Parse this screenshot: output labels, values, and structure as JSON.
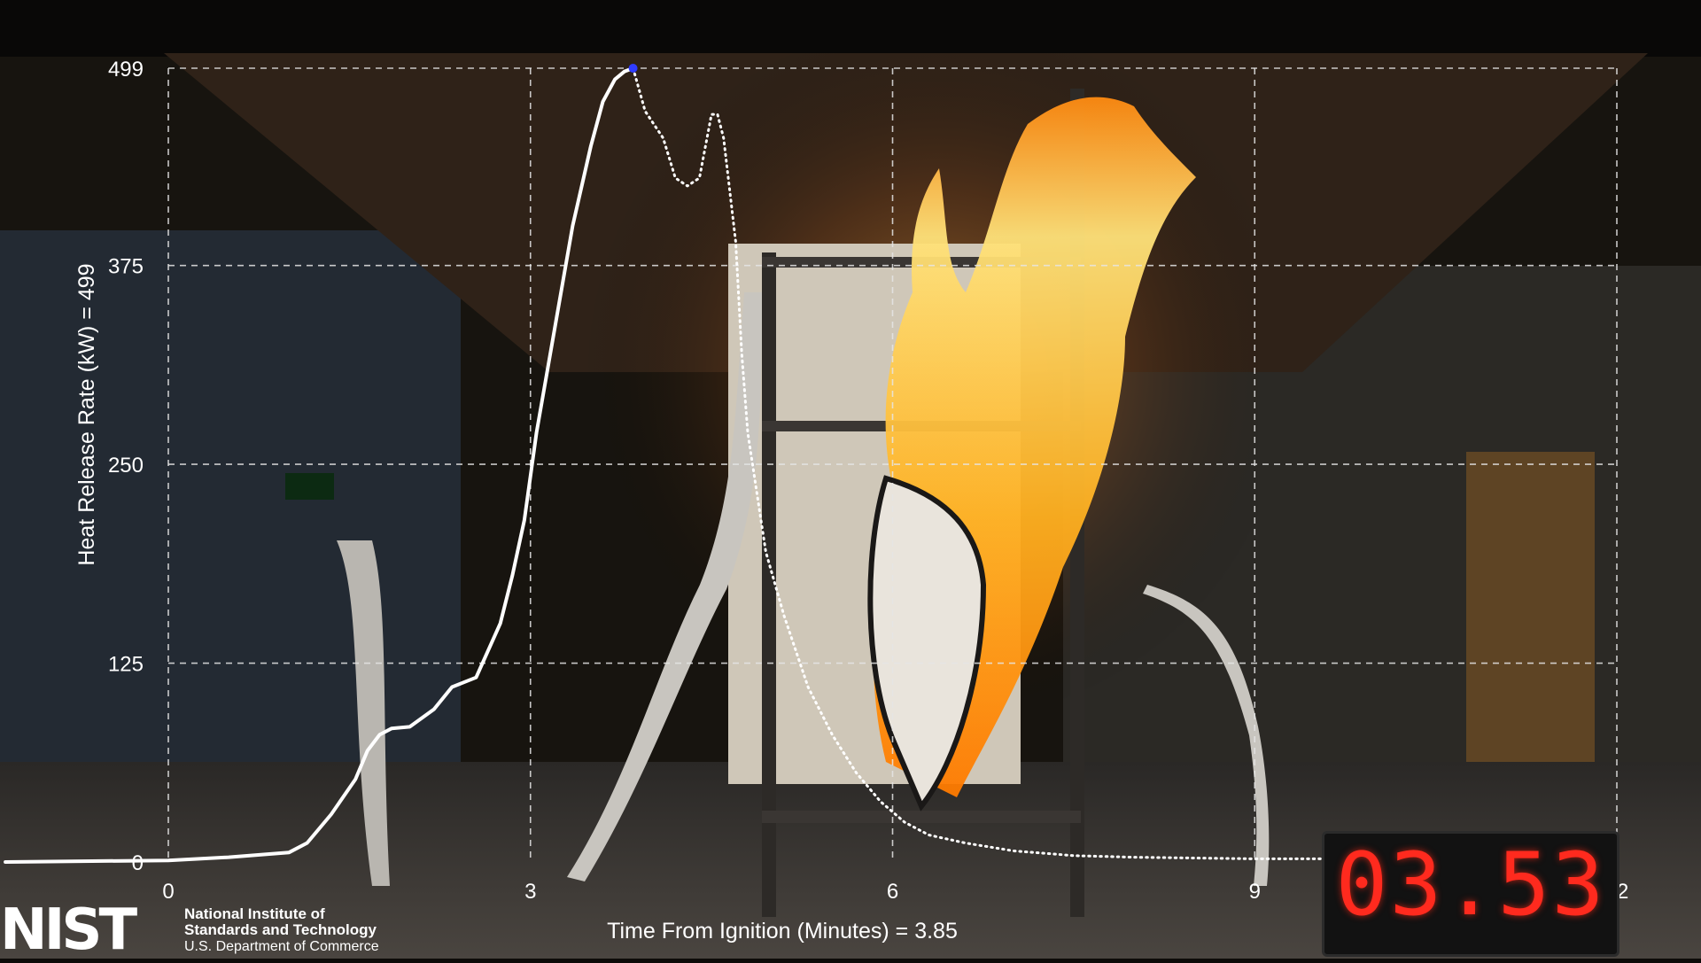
{
  "chart_data": {
    "type": "line",
    "title": "",
    "xlabel": "Time From Ignition (Minutes) = 3.85",
    "ylabel": "Heat Release Rate (kW) = 499",
    "xlim": [
      0,
      12
    ],
    "ylim": [
      0,
      499
    ],
    "x_ticks": [
      "0",
      "3",
      "6",
      "9",
      "12"
    ],
    "y_ticks": [
      "0",
      "125",
      "250",
      "375",
      "499"
    ],
    "grid": true,
    "current_point": {
      "x": 3.85,
      "y": 499
    },
    "series": [
      {
        "style": "solid",
        "color": "#ffffff",
        "x": [
          -1.35,
          0,
          0.5,
          1.0,
          1.15,
          1.35,
          1.55,
          1.65,
          1.75,
          1.85,
          2.0,
          2.2,
          2.35,
          2.55,
          2.75,
          2.85,
          2.95,
          3.05,
          3.2,
          3.35,
          3.5,
          3.6,
          3.7,
          3.78,
          3.85
        ],
        "y": [
          0,
          1,
          3,
          6,
          12,
          30,
          52,
          70,
          80,
          84,
          85,
          96,
          110,
          116,
          150,
          180,
          215,
          270,
          335,
          400,
          450,
          478,
          492,
          497,
          499
        ]
      },
      {
        "style": "dotted",
        "color": "#ffffff",
        "x": [
          3.85,
          3.95,
          4.1,
          4.2,
          4.3,
          4.4,
          4.5,
          4.55,
          4.6,
          4.7,
          4.75,
          4.8,
          4.95,
          5.1,
          5.3,
          5.5,
          5.7,
          5.9,
          6.1,
          6.3,
          6.6,
          7.0,
          7.5,
          8.0,
          9.0,
          10.0,
          11.0,
          12.0
        ],
        "y": [
          499,
          472,
          455,
          430,
          425,
          430,
          470,
          470,
          455,
          390,
          320,
          270,
          195,
          155,
          110,
          80,
          56,
          38,
          25,
          17,
          12,
          7,
          4,
          3,
          2,
          2,
          1,
          1
        ]
      }
    ]
  },
  "logo": {
    "mark": "NIST",
    "line1": "National Institute of",
    "line2": "Standards and Technology",
    "line3": "U.S. Department of Commerce"
  },
  "timer": {
    "display": "03.53"
  },
  "colors": {
    "grid": "#e6e6e6",
    "current_point": "#2f3cff",
    "timer": "#ff2a1e"
  }
}
